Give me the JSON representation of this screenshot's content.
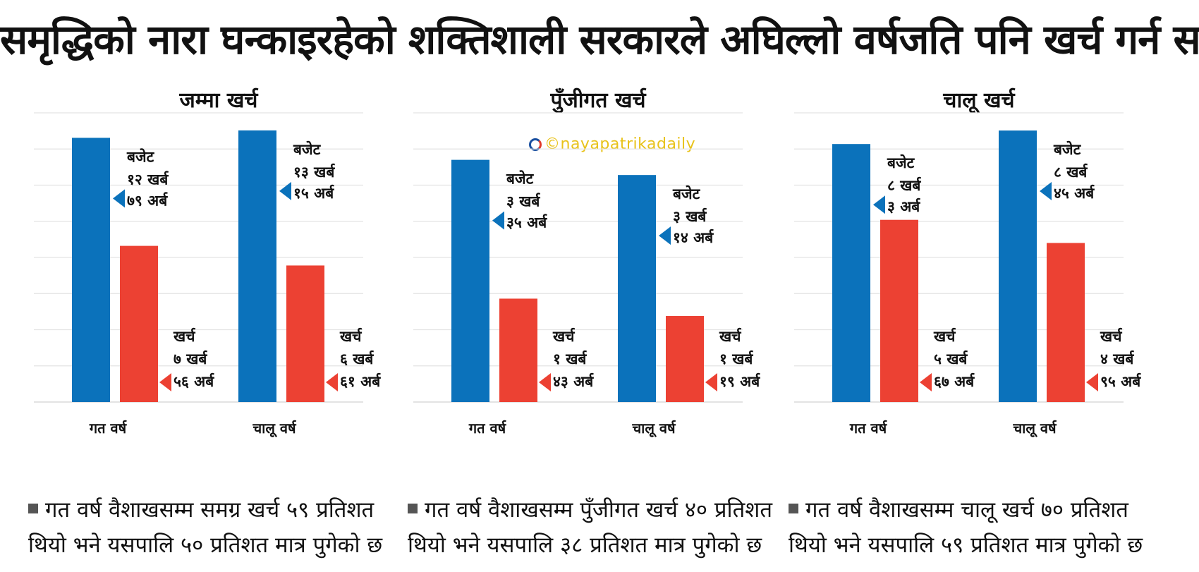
{
  "header": {
    "title": "समृद्धिको नारा घन्काइरहेको शक्तिशाली सरकारले अघिल्लो वर्षजति पनि खर्च गर्न सकेन"
  },
  "watermark": {
    "text": "©nayapatrikadaily"
  },
  "colors": {
    "budget": "#0b72bb",
    "spent": "#ec4133",
    "grid": "#e3e3e3"
  },
  "chart_data": [
    {
      "type": "bar",
      "title": "जम्मा खर्च",
      "categories": [
        "गत वर्ष",
        "चालू वर्ष"
      ],
      "series": [
        {
          "role": "budget",
          "values": [
            1279,
            1315
          ]
        },
        {
          "role": "spent",
          "values": [
            756,
            661
          ]
        }
      ],
      "ylim": [
        0,
        1400
      ],
      "grid": true,
      "annotations": [
        {
          "label": "बजेट",
          "amount": [
            "१२ खर्ब",
            "७९ अर्ब"
          ]
        },
        {
          "label": "खर्च",
          "amount": [
            "७ खर्ब",
            "५६ अर्ब"
          ]
        },
        {
          "label": "बजेट",
          "amount": [
            "१३ खर्ब",
            "१५ अर्ब"
          ]
        },
        {
          "label": "खर्च",
          "amount": [
            "६ खर्ब",
            "६१ अर्ब"
          ]
        }
      ],
      "note": [
        "गत वर्ष वैशाखसम्म समग्र खर्च ५९ प्रतिशत",
        "थियो भने यसपालि ५० प्रतिशत मात्र पुगेको छ"
      ]
    },
    {
      "type": "bar",
      "title": "पुँजीगत खर्च",
      "categories": [
        "गत वर्ष",
        "चालू वर्ष"
      ],
      "series": [
        {
          "role": "budget",
          "values": [
            335,
            314
          ]
        },
        {
          "role": "spent",
          "values": [
            143,
            119
          ]
        }
      ],
      "ylim": [
        0,
        400
      ],
      "grid": true,
      "annotations": [
        {
          "label": "बजेट",
          "amount": [
            "३ खर्ब",
            "३५ अर्ब"
          ]
        },
        {
          "label": "खर्च",
          "amount": [
            "१ खर्ब",
            "४३ अर्ब"
          ]
        },
        {
          "label": "बजेट",
          "amount": [
            "३ खर्ब",
            "१४ अर्ब"
          ]
        },
        {
          "label": "खर्च",
          "amount": [
            "१ खर्ब",
            "१९ अर्ब"
          ]
        }
      ],
      "note": [
        "गत वर्ष वैशाखसम्म पुँजीगत खर्च ४० प्रतिशत",
        "थियो भने यसपालि ३८ प्रतिशत मात्र पुगेको छ"
      ]
    },
    {
      "type": "bar",
      "title": "चालू खर्च",
      "categories": [
        "गत वर्ष",
        "चालू वर्ष"
      ],
      "series": [
        {
          "role": "budget",
          "values": [
            803,
            845
          ]
        },
        {
          "role": "spent",
          "values": [
            567,
            495
          ]
        }
      ],
      "ylim": [
        0,
        900
      ],
      "grid": true,
      "annotations": [
        {
          "label": "बजेट",
          "amount": [
            "८ खर्ब",
            "३ अर्ब"
          ]
        },
        {
          "label": "खर्च",
          "amount": [
            "५ खर्ब",
            "६७ अर्ब"
          ]
        },
        {
          "label": "बजेट",
          "amount": [
            "८ खर्ब",
            "४५ अर्ब"
          ]
        },
        {
          "label": "खर्च",
          "amount": [
            "४ खर्ब",
            "९५ अर्ब"
          ]
        }
      ],
      "note": [
        "गत वर्ष वैशाखसम्म चालू खर्च ७० प्रतिशत",
        "थियो भने यसपालि ५९ प्रतिशत मात्र पुगेको छ"
      ]
    }
  ]
}
